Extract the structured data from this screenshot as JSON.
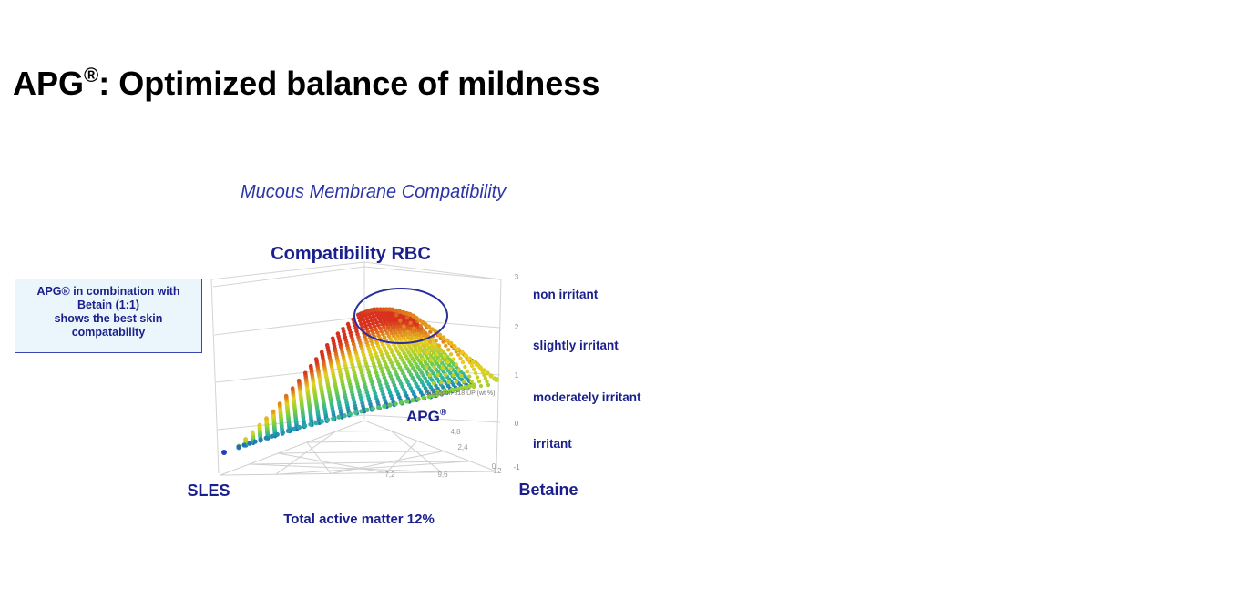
{
  "slide": {
    "title_main": "APG",
    "title_reg": "®",
    "title_rest": ": Optimized balance of mildness",
    "subtitle": "Mucous Membrane Compatibility"
  },
  "callout": {
    "line1": "APG® in combination  with",
    "line2": "Betain (1:1)",
    "line3": "shows the best skin",
    "line4": "compatability"
  },
  "chart_data": {
    "type": "scatter",
    "title": "Compatibility  RBC",
    "xlabel": "Total active matter 12%",
    "corner_left": "SLES",
    "corner_right": "Betaine",
    "apg_label": "APG",
    "apg_reg": "®",
    "z_axis_label": "Glucopon 818 UP (wt %)",
    "z_ticks": [
      "3",
      "2",
      "1",
      "0",
      "-1"
    ],
    "floor_ticks": [
      "2,4",
      "4,8",
      "7,2",
      "9,6",
      "12",
      "0"
    ],
    "zlim": [
      -1,
      3
    ],
    "categories": [
      "non irritant",
      "slightly irritant",
      "moderately irritant",
      "irritant"
    ],
    "highlight": "APG®/Betaine 1:1 region (best compatibility)",
    "colors": {
      "low": "#1f3fbf",
      "mid_low": "#25b0a8",
      "mid": "#7fd03a",
      "mid_high": "#e8d020",
      "high": "#d8321e",
      "text": "#1a1f8c",
      "ellipse": "#2a2f9a"
    },
    "series": [
      {
        "name": "SLES / Betaine",
        "color_at": "low"
      },
      {
        "name": "APG® / Betaine",
        "color_at": "high"
      }
    ]
  }
}
